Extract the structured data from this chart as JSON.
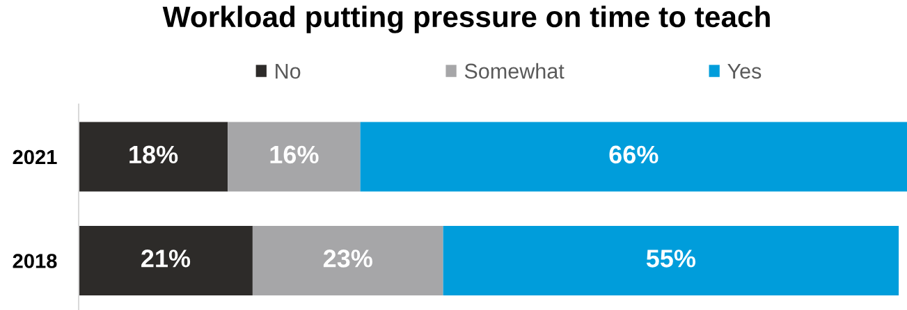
{
  "chart_data": {
    "type": "bar",
    "orientation": "horizontal",
    "stacked": true,
    "title": "Workload putting pressure on time to teach",
    "categories": [
      "2021",
      "2018"
    ],
    "series": [
      {
        "name": "No",
        "color": "#2d2b29",
        "values": [
          18,
          21
        ],
        "value_labels": [
          "18%",
          "21%"
        ]
      },
      {
        "name": "Somewhat",
        "color": "#a6a6a8",
        "values": [
          16,
          23
        ],
        "value_labels": [
          "16%",
          "23%"
        ]
      },
      {
        "name": "Yes",
        "color": "#009ddb",
        "values": [
          66,
          55
        ],
        "value_labels": [
          "66%",
          "55%"
        ]
      }
    ],
    "legend": "top",
    "tick_labels": "y"
  }
}
